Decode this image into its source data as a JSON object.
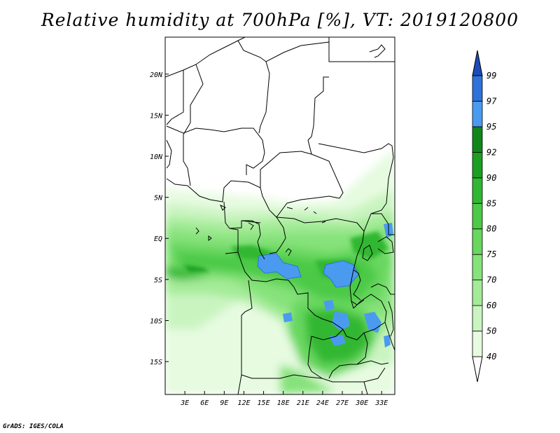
{
  "title": "Relative humidity at 700hPa [%], VT: 2019120800",
  "credit": "GrADS: IGES/COLA",
  "map": {
    "lon_range": [
      0,
      35
    ],
    "lat_range": [
      -19,
      24.5
    ],
    "lon_ticks": [
      {
        "value": 3,
        "label": "3E"
      },
      {
        "value": 6,
        "label": "6E"
      },
      {
        "value": 9,
        "label": "9E"
      },
      {
        "value": 12,
        "label": "12E"
      },
      {
        "value": 15,
        "label": "15E"
      },
      {
        "value": 18,
        "label": "18E"
      },
      {
        "value": 21,
        "label": "21E"
      },
      {
        "value": 24,
        "label": "24E"
      },
      {
        "value": 27,
        "label": "27E"
      },
      {
        "value": 30,
        "label": "30E"
      },
      {
        "value": 33,
        "label": "33E"
      }
    ],
    "lat_ticks": [
      {
        "value": 20,
        "label": "20N"
      },
      {
        "value": 15,
        "label": "15N"
      },
      {
        "value": 10,
        "label": "10N"
      },
      {
        "value": 5,
        "label": "5N"
      },
      {
        "value": 0,
        "label": "EQ"
      },
      {
        "value": -5,
        "label": "5S"
      },
      {
        "value": -10,
        "label": "10S"
      },
      {
        "value": -15,
        "label": "15S"
      }
    ]
  },
  "colorbar": {
    "levels": [
      "40",
      "50",
      "60",
      "70",
      "75",
      "80",
      "85",
      "90",
      "92",
      "95",
      "97",
      "99"
    ],
    "colors": [
      "#ffffff",
      "#e6fbe0",
      "#c9f4c0",
      "#a4eb98",
      "#86e27a",
      "#68d75e",
      "#4cc946",
      "#30b733",
      "#1c9e22",
      "#0f8718",
      "#4a9bf0",
      "#2f72dc",
      "#1b4bb8"
    ]
  }
}
